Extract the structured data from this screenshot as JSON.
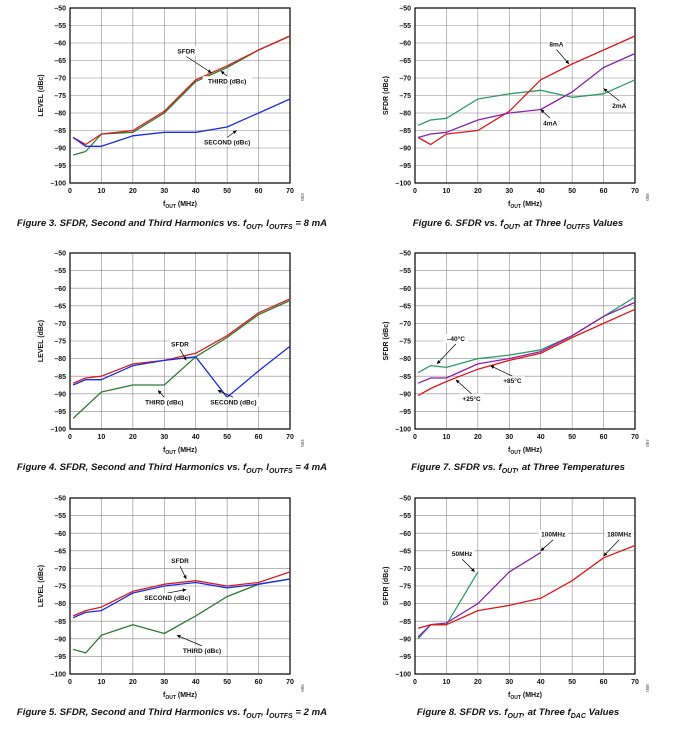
{
  "chart_data": [
    {
      "type": "line",
      "figure_id": "003",
      "caption": "Figure 3. SFDR, Second and Third Harmonics vs. f",
      "caption_sub": "OUT",
      "caption_mid": ", I",
      "caption_sub2": "OUTFS",
      "caption_tail": " = 8 mA",
      "ylabel": "LEVEL (dBc)",
      "xlabel": "f",
      "xlabel_sub": "OUT",
      "xlabel_tail": " (MHz)",
      "xlim": [
        0,
        70
      ],
      "ylim": [
        -100,
        -50
      ],
      "xticks": [
        0,
        10,
        20,
        30,
        40,
        50,
        60,
        70
      ],
      "yticks": [
        -50,
        -55,
        -60,
        -65,
        -70,
        -75,
        -80,
        -85,
        -90,
        -95,
        -100
      ],
      "series": [
        {
          "color": "#2f7d2f",
          "points": [
            [
              1,
              -92
            ],
            [
              5,
              -91
            ],
            [
              10,
              -86
            ],
            [
              20,
              -85.5
            ],
            [
              30,
              -80
            ],
            [
              40,
              -71
            ],
            [
              50,
              -67
            ],
            [
              60,
              -62
            ],
            [
              70,
              -58
            ]
          ]
        },
        {
          "color": "#d62020",
          "points": [
            [
              1,
              -87
            ],
            [
              5,
              -89
            ],
            [
              10,
              -86
            ],
            [
              20,
              -85
            ],
            [
              30,
              -79.5
            ],
            [
              40,
              -70.5
            ],
            [
              50,
              -66.5
            ],
            [
              60,
              -62
            ],
            [
              70,
              -58
            ]
          ]
        },
        {
          "color": "#1a2ee0",
          "points": [
            [
              1,
              -87
            ],
            [
              5,
              -89.5
            ],
            [
              10,
              -89.5
            ],
            [
              20,
              -86.5
            ],
            [
              30,
              -85.5
            ],
            [
              40,
              -85.5
            ],
            [
              50,
              -84
            ],
            [
              60,
              -80
            ],
            [
              70,
              -76
            ]
          ]
        }
      ],
      "annotations": [
        {
          "text": "SFDR",
          "pos": [
            37,
            -63
          ],
          "arrow_to": [
            45,
            -68.5
          ]
        },
        {
          "text": "THIRD (dBc)",
          "pos": [
            50,
            -71.5
          ],
          "arrow_to": [
            48,
            -68
          ]
        },
        {
          "text": "SECOND (dBc)",
          "pos": [
            50,
            -89
          ],
          "arrow_to": [
            53,
            -85
          ]
        }
      ]
    },
    {
      "type": "line",
      "figure_id": "004",
      "caption": "Figure 4. SFDR, Second and Third Harmonics vs. f",
      "caption_sub": "OUT",
      "caption_mid": ", I",
      "caption_sub2": "OUTFS",
      "caption_tail": " = 4 mA",
      "ylabel": "LEVEL (dBc)",
      "xlabel": "f",
      "xlabel_sub": "OUT",
      "xlabel_tail": " (MHz)",
      "xlim": [
        0,
        70
      ],
      "ylim": [
        -100,
        -50
      ],
      "xticks": [
        0,
        10,
        20,
        30,
        40,
        50,
        60,
        70
      ],
      "yticks": [
        -50,
        -55,
        -60,
        -65,
        -70,
        -75,
        -80,
        -85,
        -90,
        -95,
        -100
      ],
      "series": [
        {
          "color": "#2f7d2f",
          "points": [
            [
              1,
              -97
            ],
            [
              10,
              -89.5
            ],
            [
              20,
              -87.5
            ],
            [
              30,
              -87.5
            ],
            [
              40,
              -79.5
            ],
            [
              50,
              -74
            ],
            [
              60,
              -67.5
            ],
            [
              70,
              -63.5
            ]
          ]
        },
        {
          "color": "#d62020",
          "points": [
            [
              1,
              -87
            ],
            [
              5,
              -85.5
            ],
            [
              10,
              -85
            ],
            [
              20,
              -81.5
            ],
            [
              30,
              -80.5
            ],
            [
              40,
              -78.5
            ],
            [
              50,
              -73.5
            ],
            [
              60,
              -67
            ],
            [
              70,
              -63
            ]
          ]
        },
        {
          "color": "#1a2ee0",
          "points": [
            [
              1,
              -87.5
            ],
            [
              5,
              -86
            ],
            [
              10,
              -86
            ],
            [
              20,
              -82
            ],
            [
              30,
              -80.5
            ],
            [
              40,
              -79.5
            ],
            [
              50,
              -91
            ],
            [
              60,
              -83.5
            ],
            [
              70,
              -76.5
            ]
          ]
        }
      ],
      "annotations": [
        {
          "text": "SFDR",
          "pos": [
            35,
            -76.5
          ],
          "arrow_to": [
            37,
            -80.5
          ]
        },
        {
          "text": "THIRD (dBc)",
          "pos": [
            30,
            -93
          ],
          "arrow_to": [
            28,
            -89
          ]
        },
        {
          "text": "SECOND (dBc)",
          "pos": [
            52,
            -93
          ],
          "arrow_to": [
            47,
            -89
          ]
        }
      ]
    },
    {
      "type": "line",
      "figure_id": "005",
      "caption": "Figure 5. SFDR, Second and Third Harmonics vs. f",
      "caption_sub": "OUT",
      "caption_mid": ", I",
      "caption_sub2": "OUTFS",
      "caption_tail": " = 2 mA",
      "ylabel": "LEVEL (dBc)",
      "xlabel": "f",
      "xlabel_sub": "OUT",
      "xlabel_tail": " (MHz)",
      "xlim": [
        0,
        70
      ],
      "ylim": [
        -100,
        -50
      ],
      "xticks": [
        0,
        10,
        20,
        30,
        40,
        50,
        60,
        70
      ],
      "yticks": [
        -50,
        -55,
        -60,
        -65,
        -70,
        -75,
        -80,
        -85,
        -90,
        -95,
        -100
      ],
      "series": [
        {
          "color": "#2f7d2f",
          "points": [
            [
              1,
              -93
            ],
            [
              5,
              -94
            ],
            [
              10,
              -89
            ],
            [
              20,
              -86
            ],
            [
              30,
              -88.5
            ],
            [
              40,
              -83.5
            ],
            [
              50,
              -78
            ],
            [
              60,
              -74.5
            ],
            [
              70,
              -73
            ]
          ]
        },
        {
          "color": "#d62020",
          "points": [
            [
              1,
              -83.5
            ],
            [
              5,
              -82
            ],
            [
              10,
              -81
            ],
            [
              20,
              -76.5
            ],
            [
              30,
              -74.5
            ],
            [
              40,
              -73.5
            ],
            [
              50,
              -75
            ],
            [
              60,
              -74
            ],
            [
              70,
              -71
            ]
          ]
        },
        {
          "color": "#1a2ee0",
          "points": [
            [
              1,
              -84
            ],
            [
              5,
              -82.5
            ],
            [
              10,
              -82
            ],
            [
              20,
              -77
            ],
            [
              30,
              -75
            ],
            [
              40,
              -74
            ],
            [
              50,
              -75.5
            ],
            [
              60,
              -74.5
            ],
            [
              70,
              -73
            ]
          ]
        }
      ],
      "annotations": [
        {
          "text": "SFDR",
          "pos": [
            35,
            -68.5
          ],
          "arrow_to": [
            37,
            -73
          ]
        },
        {
          "text": "SECOND (dBc)",
          "pos": [
            31,
            -79
          ],
          "arrow_to": [
            37,
            -76
          ]
        },
        {
          "text": "THIRD (dBc)",
          "pos": [
            42,
            -94
          ],
          "arrow_to": [
            34,
            -89
          ]
        }
      ]
    },
    {
      "type": "line",
      "figure_id": "006",
      "caption": "Figure 6. SFDR vs. f",
      "caption_sub": "OUT",
      "caption_mid": ", at Three I",
      "caption_sub2": "OUTFS",
      "caption_tail": " Values",
      "ylabel": "SFDR (dBc)",
      "xlabel": "f",
      "xlabel_sub": "OUT",
      "xlabel_tail": " (MHz)",
      "xlim": [
        0,
        70
      ],
      "ylim": [
        -100,
        -50
      ],
      "xticks": [
        0,
        10,
        20,
        30,
        40,
        50,
        60,
        70
      ],
      "yticks": [
        -50,
        -55,
        -60,
        -65,
        -70,
        -75,
        -80,
        -85,
        -90,
        -95,
        -100
      ],
      "series": [
        {
          "color": "#2e9a6a",
          "points": [
            [
              1,
              -83.5
            ],
            [
              5,
              -82
            ],
            [
              10,
              -81.5
            ],
            [
              20,
              -76
            ],
            [
              30,
              -74.5
            ],
            [
              40,
              -73.5
            ],
            [
              50,
              -75.5
            ],
            [
              60,
              -74.5
            ],
            [
              70,
              -70.5
            ]
          ]
        },
        {
          "color": "#e01818",
          "points": [
            [
              1,
              -87
            ],
            [
              5,
              -89
            ],
            [
              10,
              -86
            ],
            [
              20,
              -85
            ],
            [
              30,
              -79.5
            ],
            [
              40,
              -70.5
            ],
            [
              50,
              -66
            ],
            [
              60,
              -62
            ],
            [
              70,
              -58
            ]
          ]
        },
        {
          "color": "#8b22a8",
          "points": [
            [
              1,
              -87
            ],
            [
              5,
              -86
            ],
            [
              10,
              -85.5
            ],
            [
              20,
              -82
            ],
            [
              30,
              -80
            ],
            [
              40,
              -79
            ],
            [
              50,
              -74
            ],
            [
              60,
              -67
            ],
            [
              70,
              -63
            ]
          ]
        }
      ],
      "annotations": [
        {
          "text": "8mA",
          "pos": [
            45,
            -61
          ],
          "arrow_to": [
            49,
            -66
          ]
        },
        {
          "text": "2mA",
          "pos": [
            65,
            -78.5
          ],
          "arrow_to": [
            60,
            -73
          ]
        },
        {
          "text": "4mA",
          "pos": [
            43,
            -83.5
          ],
          "arrow_to": [
            40,
            -79
          ]
        }
      ]
    },
    {
      "type": "line",
      "figure_id": "007",
      "caption": "Figure 7. SFDR vs. f",
      "caption_sub": "OUT",
      "caption_mid": ", at Three Temperatures",
      "caption_sub2": "",
      "caption_tail": "",
      "ylabel": "SFDR (dBc)",
      "xlabel": "f",
      "xlabel_sub": "OUT",
      "xlabel_tail": " (MHz)",
      "xlim": [
        0,
        70
      ],
      "ylim": [
        -100,
        -50
      ],
      "xticks": [
        0,
        10,
        20,
        30,
        40,
        50,
        60,
        70
      ],
      "yticks": [
        -50,
        -55,
        -60,
        -65,
        -70,
        -75,
        -80,
        -85,
        -90,
        -95,
        -100
      ],
      "series": [
        {
          "color": "#2e9a6a",
          "points": [
            [
              1,
              -84
            ],
            [
              5,
              -82
            ],
            [
              10,
              -82.5
            ],
            [
              20,
              -80
            ],
            [
              30,
              -79
            ],
            [
              40,
              -77.5
            ],
            [
              50,
              -73.5
            ],
            [
              60,
              -68
            ],
            [
              70,
              -62.5
            ]
          ]
        },
        {
          "color": "#e01818",
          "points": [
            [
              1,
              -90.5
            ],
            [
              5,
              -88.5
            ],
            [
              10,
              -86.5
            ],
            [
              20,
              -83
            ],
            [
              30,
              -80.5
            ],
            [
              40,
              -78.5
            ],
            [
              50,
              -74
            ],
            [
              60,
              -70
            ],
            [
              70,
              -66
            ]
          ]
        },
        {
          "color": "#8b22a8",
          "points": [
            [
              1,
              -87
            ],
            [
              5,
              -85.5
            ],
            [
              10,
              -85.5
            ],
            [
              20,
              -81.5
            ],
            [
              30,
              -80
            ],
            [
              40,
              -78
            ],
            [
              50,
              -73.5
            ],
            [
              60,
              -68
            ],
            [
              70,
              -64
            ]
          ]
        }
      ],
      "annotations": [
        {
          "text": "–40°C",
          "pos": [
            13,
            -75
          ],
          "arrow_to": [
            7,
            -81.5
          ]
        },
        {
          "text": "+85°C",
          "pos": [
            31,
            -87
          ],
          "arrow_to": [
            24,
            -82
          ]
        },
        {
          "text": "+25°C",
          "pos": [
            18,
            -92
          ],
          "arrow_to": [
            13,
            -86
          ]
        }
      ]
    },
    {
      "type": "line",
      "figure_id": "008",
      "caption": "Figure 8. SFDR vs. f",
      "caption_sub": "OUT",
      "caption_mid": ", at Three f",
      "caption_sub2": "DAC",
      "caption_tail": " Values",
      "ylabel": "SFDR (dBc)",
      "xlabel": "f",
      "xlabel_sub": "OUT",
      "xlabel_tail": " (MHz)",
      "xlim": [
        0,
        70
      ],
      "ylim": [
        -100,
        -50
      ],
      "xticks": [
        0,
        10,
        20,
        30,
        40,
        50,
        60,
        70
      ],
      "yticks": [
        -50,
        -55,
        -60,
        -65,
        -70,
        -75,
        -80,
        -85,
        -90,
        -95,
        -100
      ],
      "series": [
        {
          "color": "#2e9a6a",
          "points": [
            [
              1,
              -90
            ],
            [
              5,
              -86
            ],
            [
              10,
              -86
            ],
            [
              20,
              -71
            ]
          ]
        },
        {
          "color": "#8b22a8",
          "points": [
            [
              1,
              -89.5
            ],
            [
              5,
              -86
            ],
            [
              10,
              -85.5
            ],
            [
              20,
              -80
            ],
            [
              30,
              -71
            ],
            [
              40,
              -65.5
            ]
          ]
        },
        {
          "color": "#e01818",
          "points": [
            [
              1,
              -87
            ],
            [
              5,
              -86
            ],
            [
              10,
              -86
            ],
            [
              20,
              -82
            ],
            [
              30,
              -80.5
            ],
            [
              40,
              -78.5
            ],
            [
              50,
              -73.5
            ],
            [
              60,
              -67
            ],
            [
              70,
              -63.5
            ]
          ]
        }
      ],
      "annotations": [
        {
          "text": "50MHz",
          "pos": [
            15,
            -66.5
          ],
          "arrow_to": [
            19,
            -71
          ]
        },
        {
          "text": "100MHz",
          "pos": [
            44,
            -61
          ],
          "arrow_to": [
            40,
            -65
          ]
        },
        {
          "text": "180MHz",
          "pos": [
            65,
            -61
          ],
          "arrow_to": [
            60,
            -66.5
          ]
        }
      ]
    }
  ]
}
